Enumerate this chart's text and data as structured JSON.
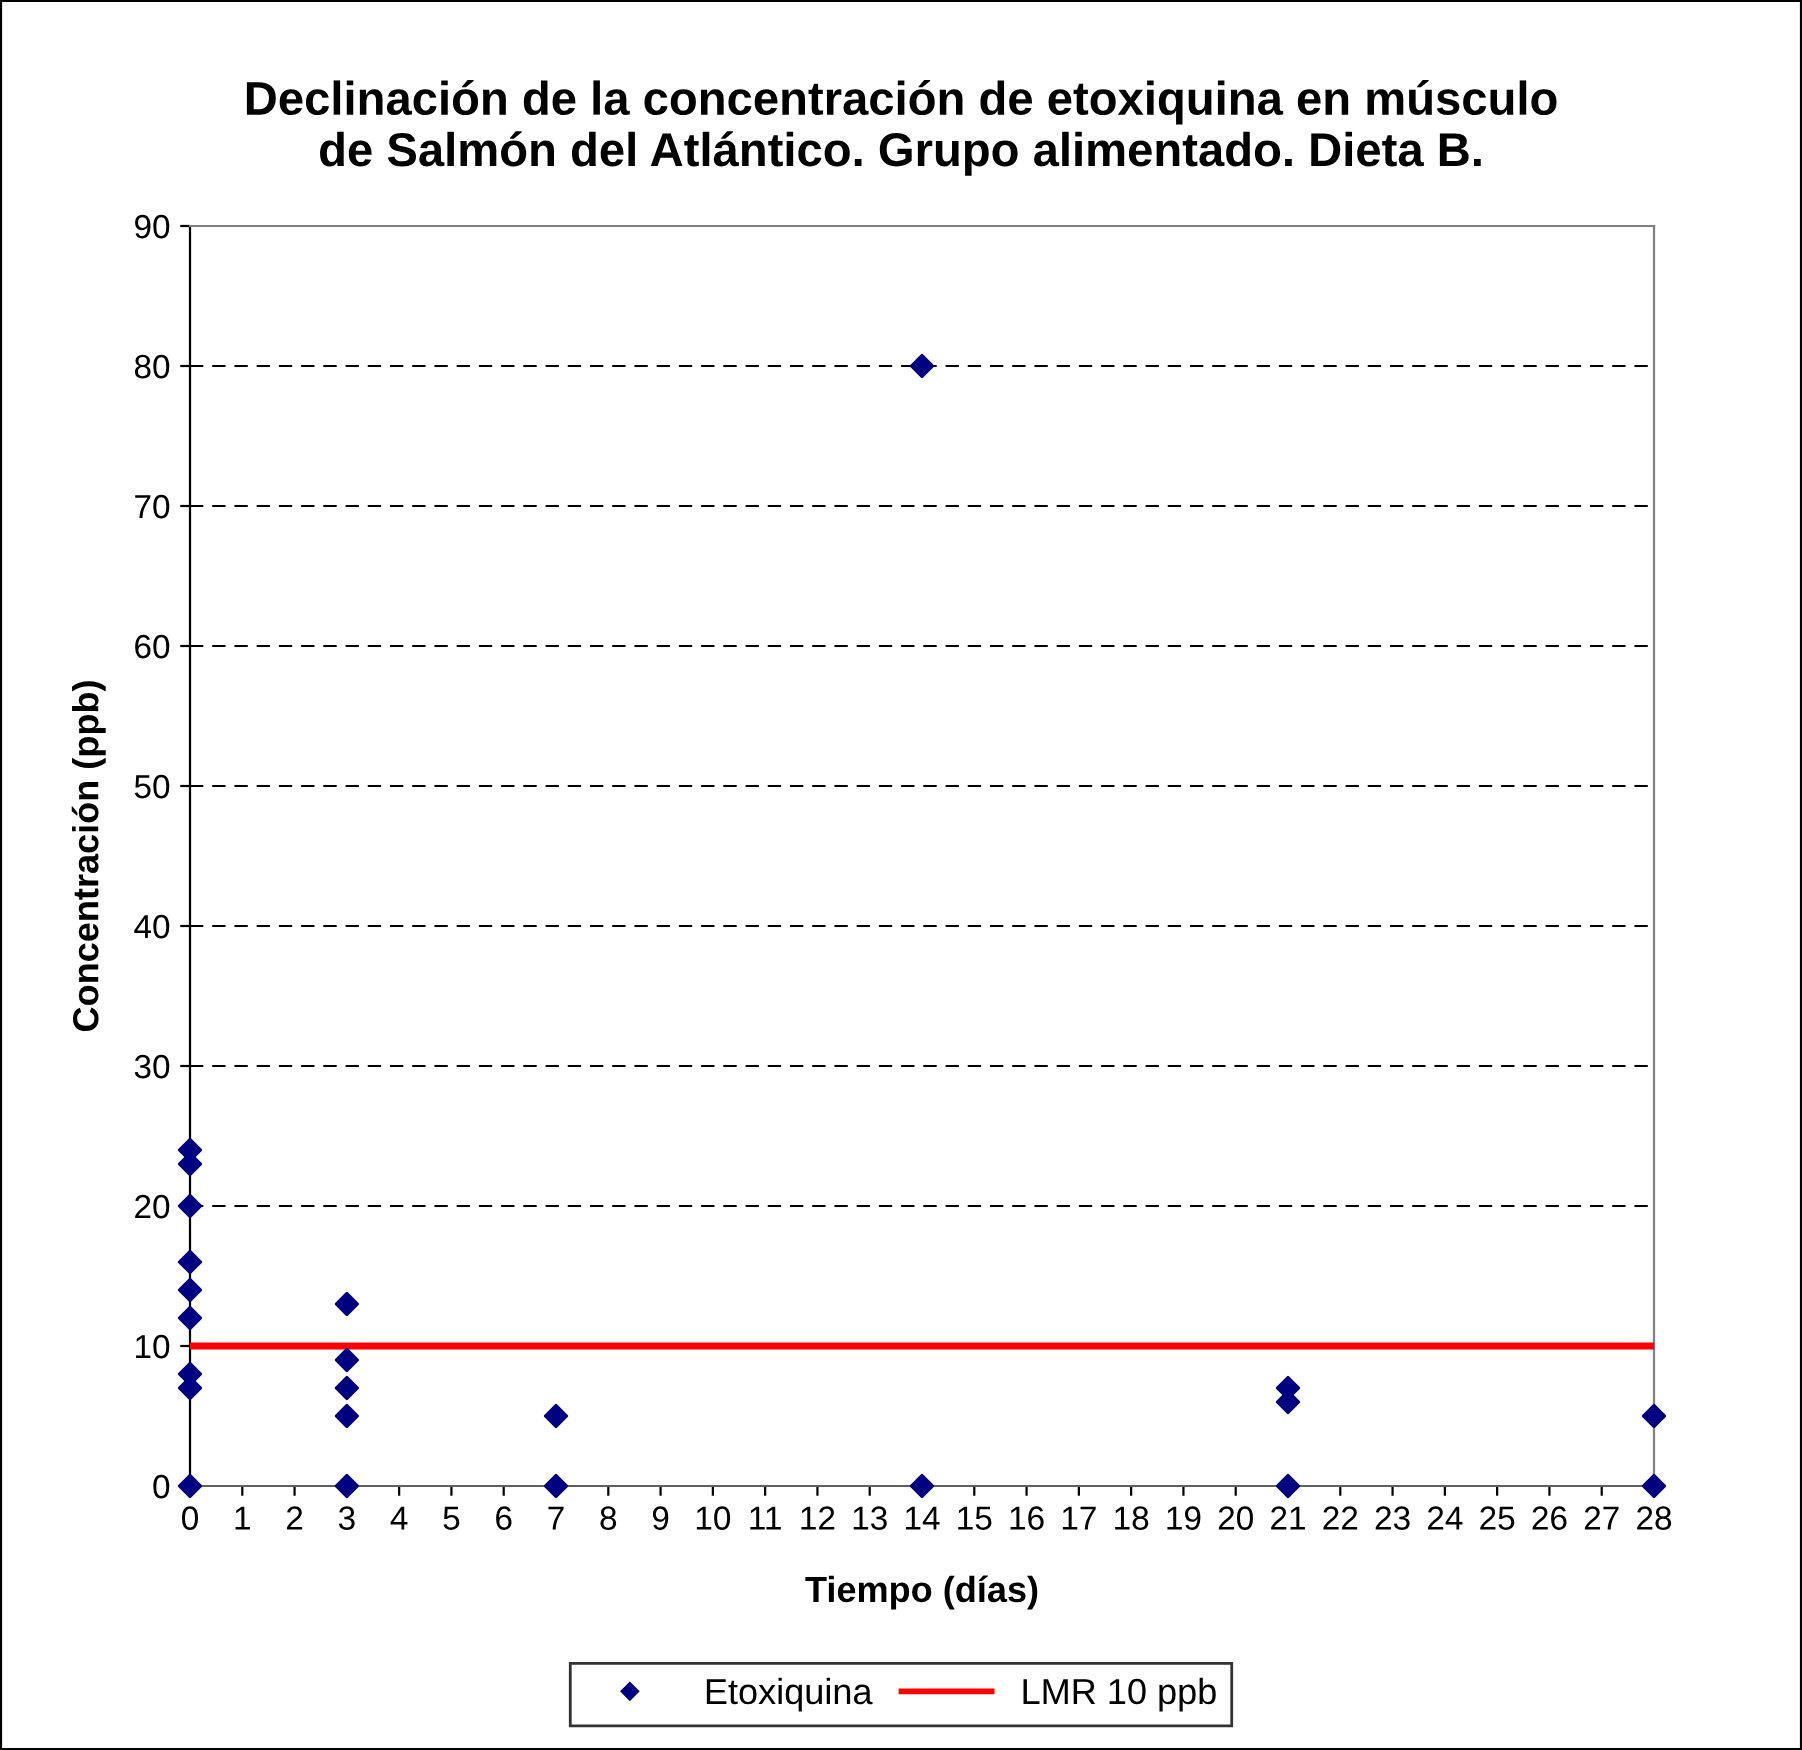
{
  "chart_data": {
    "type": "scatter",
    "title": "Declinación de la concentración de etoxiquina en músculo\nde Salmón del Atlántico. Grupo alimentado. Dieta B.",
    "xlabel": "Tiempo (días)",
    "ylabel": "Concentración (ppb)",
    "series": [
      {
        "name": "Etoxiquina",
        "color": "#000080",
        "marker": "diamond",
        "x": [
          0,
          0,
          0,
          0,
          0,
          0,
          0,
          0,
          0,
          3,
          3,
          3,
          3,
          3,
          7,
          7,
          14,
          14,
          21,
          21,
          21,
          28,
          28
        ],
        "values": [
          0,
          7,
          8,
          12,
          14,
          16,
          20,
          23,
          24,
          0,
          5,
          7,
          9,
          13,
          0,
          5,
          0,
          80,
          0,
          6,
          7,
          0,
          5
        ]
      },
      {
        "name": "LMR 10 ppb",
        "type": "line",
        "color": "#ff0000",
        "marker": "none",
        "line_style": "solid",
        "x": [
          0,
          3,
          7,
          14,
          21,
          28
        ],
        "values": [
          10,
          10,
          10,
          10,
          10,
          10
        ]
      }
    ],
    "xlim": [
      0,
      28
    ],
    "xticks": [
      0,
      1,
      2,
      3,
      4,
      5,
      6,
      7,
      8,
      9,
      10,
      11,
      12,
      13,
      14,
      15,
      16,
      17,
      18,
      19,
      20,
      21,
      22,
      23,
      24,
      25,
      26,
      27,
      28
    ],
    "ylim": [
      0,
      90
    ],
    "yticks": [
      0,
      10,
      20,
      30,
      40,
      50,
      60,
      70,
      80,
      90
    ],
    "grid": "y",
    "legend": "bottom"
  }
}
